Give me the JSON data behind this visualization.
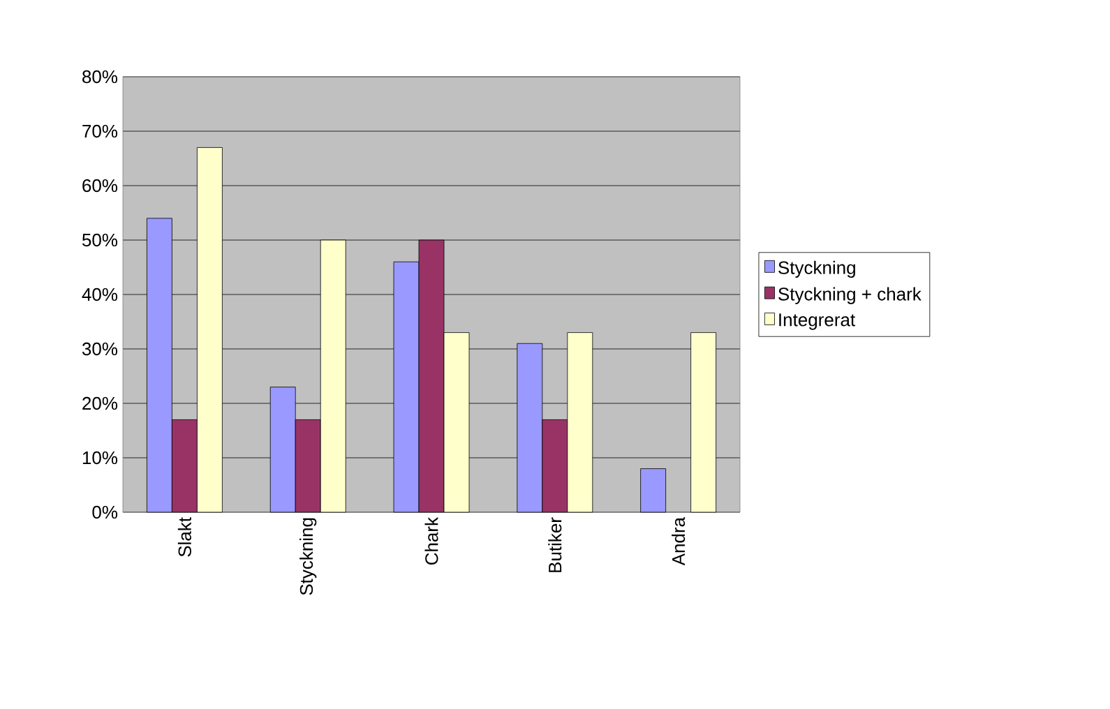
{
  "chart_data": {
    "type": "bar",
    "categories": [
      "Slakt",
      "Styckning",
      "Chark",
      "Butiker",
      "Andra"
    ],
    "series": [
      {
        "name": "Styckning",
        "color": "#9999ff",
        "values": [
          54,
          23,
          46,
          31,
          8
        ]
      },
      {
        "name": "Styckning + chark",
        "color": "#993366",
        "values": [
          17,
          17,
          50,
          17,
          null
        ]
      },
      {
        "name": "Integrerat",
        "color": "#ffffcc",
        "values": [
          67,
          50,
          33,
          33,
          33
        ]
      }
    ],
    "ylim": [
      0,
      80
    ],
    "yticks": [
      {
        "value": 0,
        "label": "0%"
      },
      {
        "value": 10,
        "label": "10%"
      },
      {
        "value": 20,
        "label": "20%"
      },
      {
        "value": 30,
        "label": "30%"
      },
      {
        "value": 40,
        "label": "40%"
      },
      {
        "value": 50,
        "label": "50%"
      },
      {
        "value": 60,
        "label": "60%"
      },
      {
        "value": 70,
        "label": "70%"
      },
      {
        "value": 80,
        "label": "80%"
      }
    ],
    "grid": "y",
    "legend": "right"
  }
}
